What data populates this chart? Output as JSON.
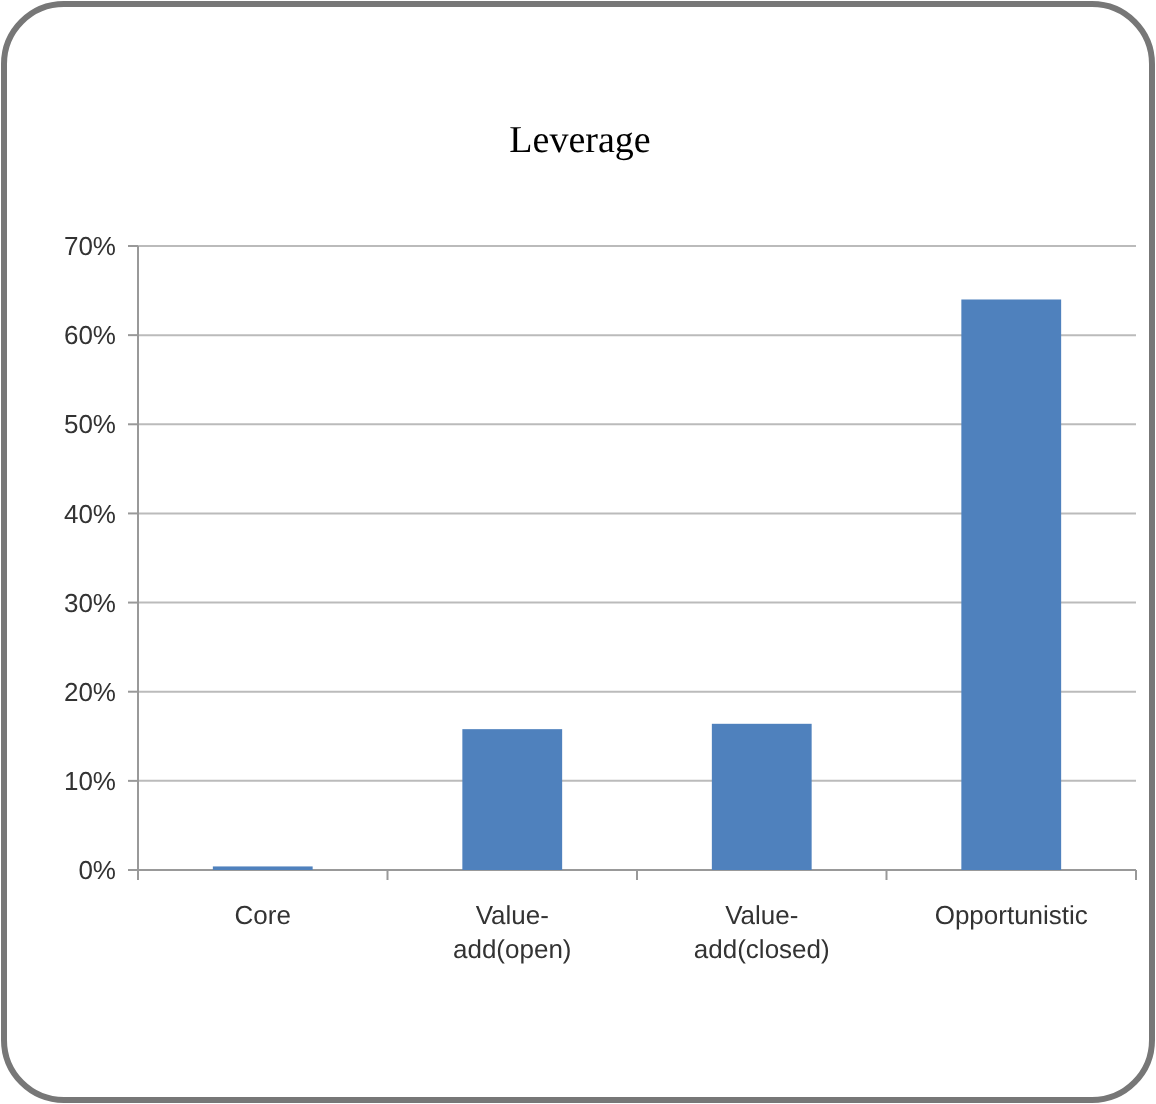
{
  "chart_data": {
    "type": "bar",
    "title": "Leverage",
    "categories": [
      "Core",
      "Value-add(open)",
      "Value-add(closed)",
      "Opportunistic"
    ],
    "values": [
      0.4,
      15.8,
      16.4,
      64.0
    ],
    "color": "#4f81bd",
    "ylim": [
      0,
      70
    ],
    "yticks": [
      {
        "value": 0,
        "label": "0%"
      },
      {
        "value": 10,
        "label": "10%"
      },
      {
        "value": 20,
        "label": "20%"
      },
      {
        "value": 30,
        "label": "30%"
      },
      {
        "value": 40,
        "label": "40%"
      },
      {
        "value": 50,
        "label": "50%"
      },
      {
        "value": 60,
        "label": "60%"
      },
      {
        "value": 70,
        "label": "70%"
      }
    ],
    "grid": "y"
  }
}
